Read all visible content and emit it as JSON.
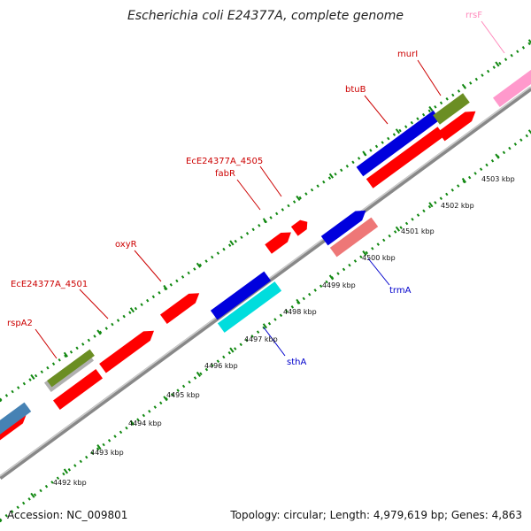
{
  "title": "Escherichia coli E24377A, complete genome",
  "footer": {
    "accession": "Accession: NC_009801",
    "summary": "Topology: circular; Length: 4,979,619 bp; Genes: 4,863"
  },
  "colors": {
    "red": "#ff0000",
    "darkred": "#cc0000",
    "blue": "#0000dd",
    "cyan": "#00dddd",
    "olive": "#6b8e23",
    "gray": "#b0b0b0",
    "steelblue": "#4682b4",
    "salmon": "#ee7777",
    "pink": "#ff99cc",
    "labelRed": "#cc0000",
    "labelBlue": "#0000cc",
    "labelPink": "#ff88bb",
    "tick": "#118811"
  },
  "scale": {
    "kbp_labels": [
      "4492 kbp",
      "4493 kbp",
      "4494 kbp",
      "4495 kbp",
      "4496 kbp",
      "4497 kbp",
      "4498 kbp",
      "4499 kbp",
      "4500 kbp",
      "4501 kbp",
      "4502 kbp",
      "4503 kbp"
    ]
  },
  "gene_labels_top": [
    {
      "name": "rspA2",
      "color": "labelRed"
    },
    {
      "name": "EcE24377A_4501",
      "color": "labelRed"
    },
    {
      "name": "oxyR",
      "color": "labelRed"
    },
    {
      "name": "fabR",
      "color": "labelRed"
    },
    {
      "name": "EcE24377A_4505",
      "color": "labelRed"
    },
    {
      "name": "btuB",
      "color": "labelRed"
    },
    {
      "name": "murI",
      "color": "labelRed"
    },
    {
      "name": "rrsF",
      "color": "labelPink"
    }
  ],
  "gene_labels_bottom": [
    {
      "name": "sthA",
      "color": "labelBlue"
    },
    {
      "name": "trmA",
      "color": "labelBlue"
    }
  ]
}
